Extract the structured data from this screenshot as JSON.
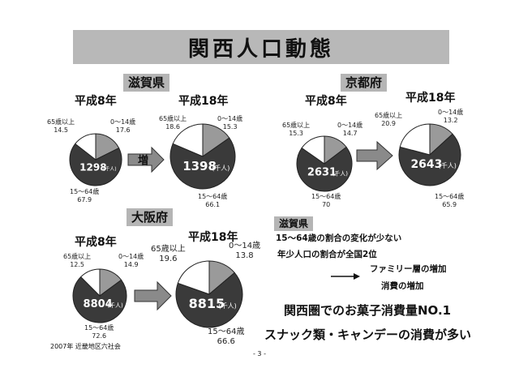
{
  "title": "関西人口動態",
  "increase_label": "増",
  "regions": {
    "shiga": {
      "name": "滋賀県",
      "before": {
        "year": "平成8年",
        "total": "1298",
        "unit": "(千人)",
        "old_label": "65歳以上",
        "old_value": "14.5",
        "young_label": "0～14歳",
        "young_value": "17.6",
        "working_label": "15～64歳",
        "working_value": "67.9"
      },
      "after": {
        "year": "平成18年",
        "total": "1398",
        "unit": "(千人)",
        "old_label": "65歳以上",
        "old_value": "18.6",
        "young_label": "0～14歳",
        "young_value": "15.3",
        "working_label": "15～64歳",
        "working_value": "66.1"
      }
    },
    "kyoto": {
      "name": "京都府",
      "before": {
        "year": "平成8年",
        "total": "2631",
        "unit": "(千人)",
        "old_label": "65歳以上",
        "old_value": "15.3",
        "young_label": "0～14歳",
        "young_value": "14.7",
        "working_label": "15～64歳",
        "working_value": "70"
      },
      "after": {
        "year": "平成18年",
        "total": "2643",
        "unit": "(千人)",
        "old_label": "65歳以上",
        "old_value": "20.9",
        "young_label": "0～14歳",
        "young_value": "13.2",
        "working_label": "15～64歳",
        "working_value": "65.9"
      }
    },
    "osaka": {
      "name": "大阪府",
      "before": {
        "year": "平成8年",
        "total": "8804",
        "unit": "(千人)",
        "old_label": "65歳以上",
        "old_value": "12.5",
        "young_label": "0～14歳",
        "young_value": "14.9",
        "working_label": "15～64歳",
        "working_value": "72.6"
      },
      "after": {
        "year": "平成18年",
        "total": "8815",
        "unit": "(千人)",
        "old_label": "65歳以上",
        "old_value": "19.6",
        "young_label": "0～14歳",
        "young_value": "13.8",
        "working_label": "15～64歳",
        "working_value": "66.6"
      }
    }
  },
  "notes": {
    "heading": "滋賀県",
    "line1": "15～64歳の割合の変化が少ない",
    "line2": "年少人口の割合が全国2位",
    "arrow_line1": "ファミリー層の増加",
    "arrow_line2": "消費の増加",
    "big1": "関西圏でのお菓子消費量NO.1",
    "big2": "スナック類・キャンデーの消費が多い"
  },
  "footer": {
    "source": "2007年 近畿地区六社会",
    "page": "- 3 -"
  },
  "colors": {
    "young": "#9a9a9a",
    "working": "#3a3a3a",
    "old": "#ffffff",
    "banner": "#b8b8b8"
  }
}
